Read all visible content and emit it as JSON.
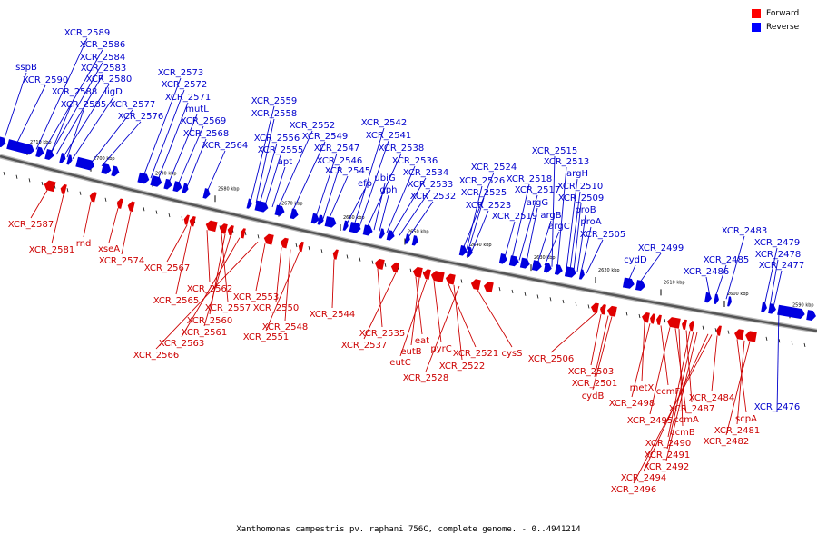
{
  "caption": "Xanthomonas campestris pv. raphani 756C, complete genome. - 0..4941214",
  "legend": [
    {
      "label": "Forward",
      "color": "#ff0000"
    },
    {
      "label": "Reverse",
      "color": "#0000ff"
    }
  ],
  "colors": {
    "forward": "#e00000",
    "reverse": "#0000e0",
    "axis": "#777777"
  },
  "scale_ticks": [
    "2710 kbp",
    "2700 kbp",
    "2690 kbp",
    "2680 kbp",
    "2670 kbp",
    "2660 kbp",
    "2650 kbp",
    "2640 kbp",
    "2630 kbp",
    "2620 kbp",
    "2610 kbp",
    "2600 kbp",
    "2590 kbp"
  ],
  "reverse_labels": [
    "XCR_2589",
    "XCR_2586",
    "XCR_2584",
    "sspB",
    "XCR_2583",
    "XCR_2590",
    "XCR_2580",
    "XCR_2588",
    "ligD",
    "XCR_2585",
    "XCR_2577",
    "XCR_2576",
    "XCR_2573",
    "XCR_2572",
    "XCR_2571",
    "mutL",
    "XCR_2569",
    "XCR_2568",
    "XCR_2564",
    "XCR_2559",
    "XCR_2558",
    "XCR_2552",
    "XCR_2556",
    "XCR_2549",
    "XCR_2555",
    "apt",
    "XCR_2547",
    "XCR_2546",
    "XCR_2545",
    "efp",
    "XCR_2542",
    "XCR_2541",
    "XCR_2538",
    "ubiG",
    "gph",
    "XCR_2536",
    "XCR_2534",
    "XCR_2533",
    "XCR_2532",
    "XCR_2524",
    "XCR_2526",
    "XCR_2525",
    "XCR_2523",
    "XCR_2519",
    "XCR_2518",
    "XCR_2517",
    "argG",
    "argB",
    "argC",
    "XCR_2515",
    "XCR_2513",
    "argH",
    "XCR_2510",
    "XCR_2509",
    "proB",
    "proA",
    "XCR_2505",
    "cydD",
    "XCR_2499",
    "XCR_2486",
    "XCR_2485",
    "XCR_2483",
    "XCR_2479",
    "XCR_2478",
    "XCR_2477",
    "XCR_2476"
  ],
  "forward_labels": [
    "XCR_2587",
    "XCR_2581",
    "rnd",
    "xseA",
    "XCR_2574",
    "XCR_2567",
    "XCR_2565",
    "XCR_2562",
    "XCR_2557",
    "XCR_2560",
    "XCR_2561",
    "XCR_2563",
    "XCR_2566",
    "XCR_2553",
    "XCR_2550",
    "XCR_2548",
    "XCR_2551",
    "XCR_2544",
    "XCR_2535",
    "XCR_2537",
    "eat",
    "eutB",
    "eutC",
    "pyrC",
    "XCR_2521",
    "XCR_2522",
    "XCR_2528",
    "cysS",
    "XCR_2506",
    "XCR_2503",
    "XCR_2501",
    "cydB",
    "metX",
    "XCR_2498",
    "ccmF",
    "XCR_2495",
    "ccmA",
    "XCR_2487",
    "ccmB",
    "XCR_2490",
    "XCR_2491",
    "XCR_2492",
    "XCR_2494",
    "XCR_2496",
    "XCR_2484",
    "scpA",
    "XCR_2481",
    "XCR_2482"
  ]
}
